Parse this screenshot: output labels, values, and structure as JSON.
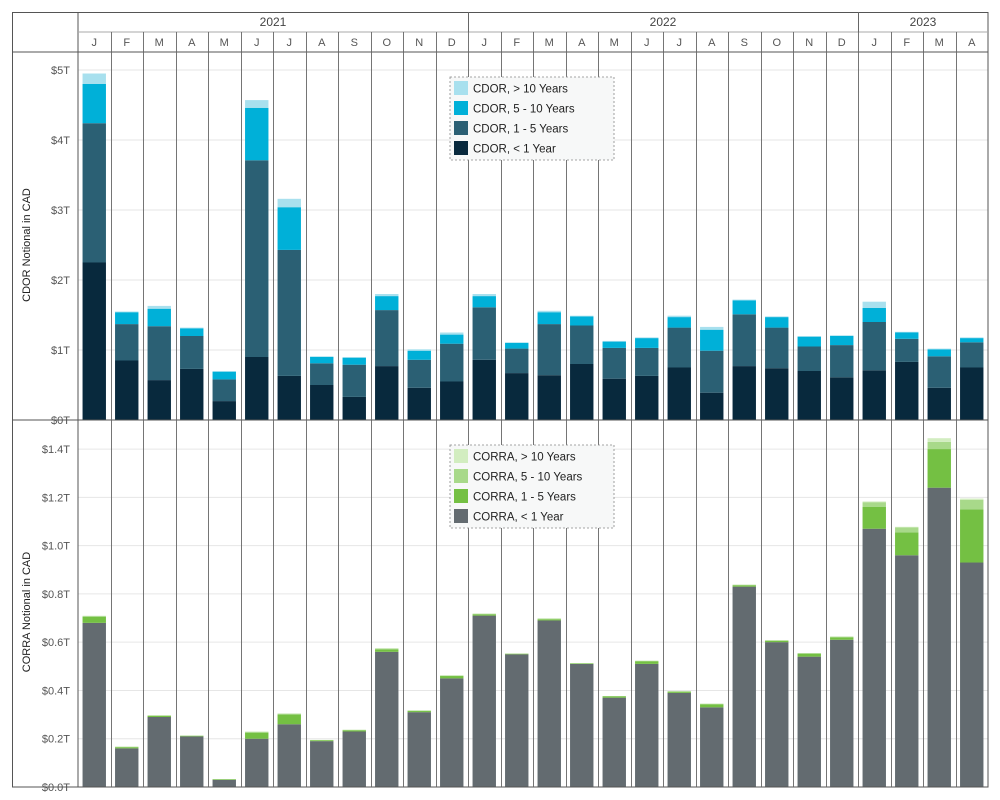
{
  "chart_data": [
    {
      "type": "bar",
      "stacked": true,
      "ylabel": "CDOR Notional in CAD",
      "unit": "T",
      "ylim": [
        0,
        5.0
      ],
      "yticks": [
        "$0T",
        "$1T",
        "$2T",
        "$3T",
        "$4T",
        "$5T"
      ],
      "yticks_values": [
        0,
        1,
        2,
        3,
        4,
        5
      ],
      "grid": true,
      "legend_position": "top-center",
      "series": [
        {
          "name": "CDOR, < 1 Year",
          "color": "#08293d",
          "values": [
            2.25,
            0.85,
            0.57,
            0.73,
            0.27,
            0.9,
            0.63,
            0.5,
            0.33,
            0.77,
            0.46,
            0.55,
            0.86,
            0.67,
            0.64,
            0.8,
            0.59,
            0.63,
            0.75,
            0.39,
            0.77,
            0.74,
            0.7,
            0.61,
            0.71,
            0.83,
            0.46,
            0.75
          ]
        },
        {
          "name": "CDOR, 1 - 5 Years",
          "color": "#2b6074",
          "values": [
            1.99,
            0.52,
            0.77,
            0.47,
            0.31,
            2.81,
            1.8,
            0.31,
            0.46,
            0.8,
            0.4,
            0.54,
            0.75,
            0.35,
            0.73,
            0.55,
            0.44,
            0.4,
            0.57,
            0.6,
            0.74,
            0.58,
            0.35,
            0.46,
            0.69,
            0.33,
            0.45,
            0.36
          ]
        },
        {
          "name": "CDOR, 5 - 10 Years",
          "color": "#00b0d8",
          "values": [
            0.56,
            0.17,
            0.25,
            0.11,
            0.11,
            0.75,
            0.61,
            0.09,
            0.1,
            0.2,
            0.13,
            0.13,
            0.16,
            0.08,
            0.17,
            0.13,
            0.09,
            0.14,
            0.15,
            0.3,
            0.2,
            0.15,
            0.14,
            0.13,
            0.2,
            0.09,
            0.1,
            0.06
          ]
        },
        {
          "name": "CDOR, > 10 Years",
          "color": "#a8e0ee",
          "values": [
            0.15,
            0.01,
            0.04,
            0.01,
            0.01,
            0.11,
            0.12,
            0.01,
            0.01,
            0.03,
            0.02,
            0.03,
            0.03,
            0.01,
            0.02,
            0.01,
            0.01,
            0.01,
            0.02,
            0.04,
            0.01,
            0.01,
            0.01,
            0.01,
            0.09,
            0.01,
            0.01,
            0.01
          ]
        }
      ]
    },
    {
      "type": "bar",
      "stacked": true,
      "ylabel": "CORRA Notional in CAD",
      "unit": "T",
      "ylim": [
        0,
        1.45
      ],
      "yticks": [
        "$0.0T",
        "$0.2T",
        "$0.4T",
        "$0.6T",
        "$0.8T",
        "$1.0T",
        "$1.2T",
        "$1.4T"
      ],
      "yticks_values": [
        0,
        0.2,
        0.4,
        0.6,
        0.8,
        1.0,
        1.2,
        1.4
      ],
      "grid": true,
      "legend_position": "top-center",
      "series": [
        {
          "name": "CORRA, < 1 Year",
          "color": "#636b70",
          "values": [
            0.68,
            0.16,
            0.29,
            0.21,
            0.03,
            0.2,
            0.26,
            0.19,
            0.23,
            0.56,
            0.31,
            0.45,
            0.71,
            0.55,
            0.69,
            0.51,
            0.37,
            0.51,
            0.39,
            0.33,
            0.83,
            0.6,
            0.54,
            0.61,
            1.07,
            0.96,
            1.24,
            0.93
          ]
        },
        {
          "name": "CORRA, 1 - 5 Years",
          "color": "#74c043",
          "values": [
            0.025,
            0.005,
            0.005,
            0.002,
            0.002,
            0.025,
            0.04,
            0.003,
            0.005,
            0.01,
            0.005,
            0.01,
            0.005,
            0.002,
            0.005,
            0.002,
            0.005,
            0.01,
            0.005,
            0.012,
            0.005,
            0.005,
            0.012,
            0.01,
            0.09,
            0.095,
            0.16,
            0.22
          ]
        },
        {
          "name": "CORRA, 5 - 10 Years",
          "color": "#a8d98a",
          "values": [
            0.004,
            0.002,
            0.002,
            0.001,
            0.001,
            0.004,
            0.004,
            0.002,
            0.002,
            0.004,
            0.002,
            0.002,
            0.003,
            0.001,
            0.003,
            0.001,
            0.002,
            0.003,
            0.002,
            0.003,
            0.003,
            0.003,
            0.003,
            0.003,
            0.02,
            0.02,
            0.03,
            0.04
          ]
        },
        {
          "name": "CORRA, > 10 Years",
          "color": "#d2edc0",
          "values": [
            0,
            0,
            0,
            0,
            0,
            0,
            0,
            0,
            0,
            0,
            0,
            0,
            0,
            0,
            0,
            0,
            0,
            0,
            0,
            0,
            0,
            0,
            0,
            0,
            0.003,
            0.003,
            0.015,
            0.005
          ]
        }
      ]
    }
  ],
  "x_axis": {
    "years": [
      {
        "label": "2021",
        "months": 12
      },
      {
        "label": "2022",
        "months": 12
      },
      {
        "label": "2023",
        "months": 4
      }
    ],
    "months": [
      "J",
      "F",
      "M",
      "A",
      "M",
      "J",
      "J",
      "A",
      "S",
      "O",
      "N",
      "D",
      "J",
      "F",
      "M",
      "A",
      "M",
      "J",
      "J",
      "A",
      "S",
      "O",
      "N",
      "D",
      "J",
      "F",
      "M",
      "A"
    ]
  }
}
